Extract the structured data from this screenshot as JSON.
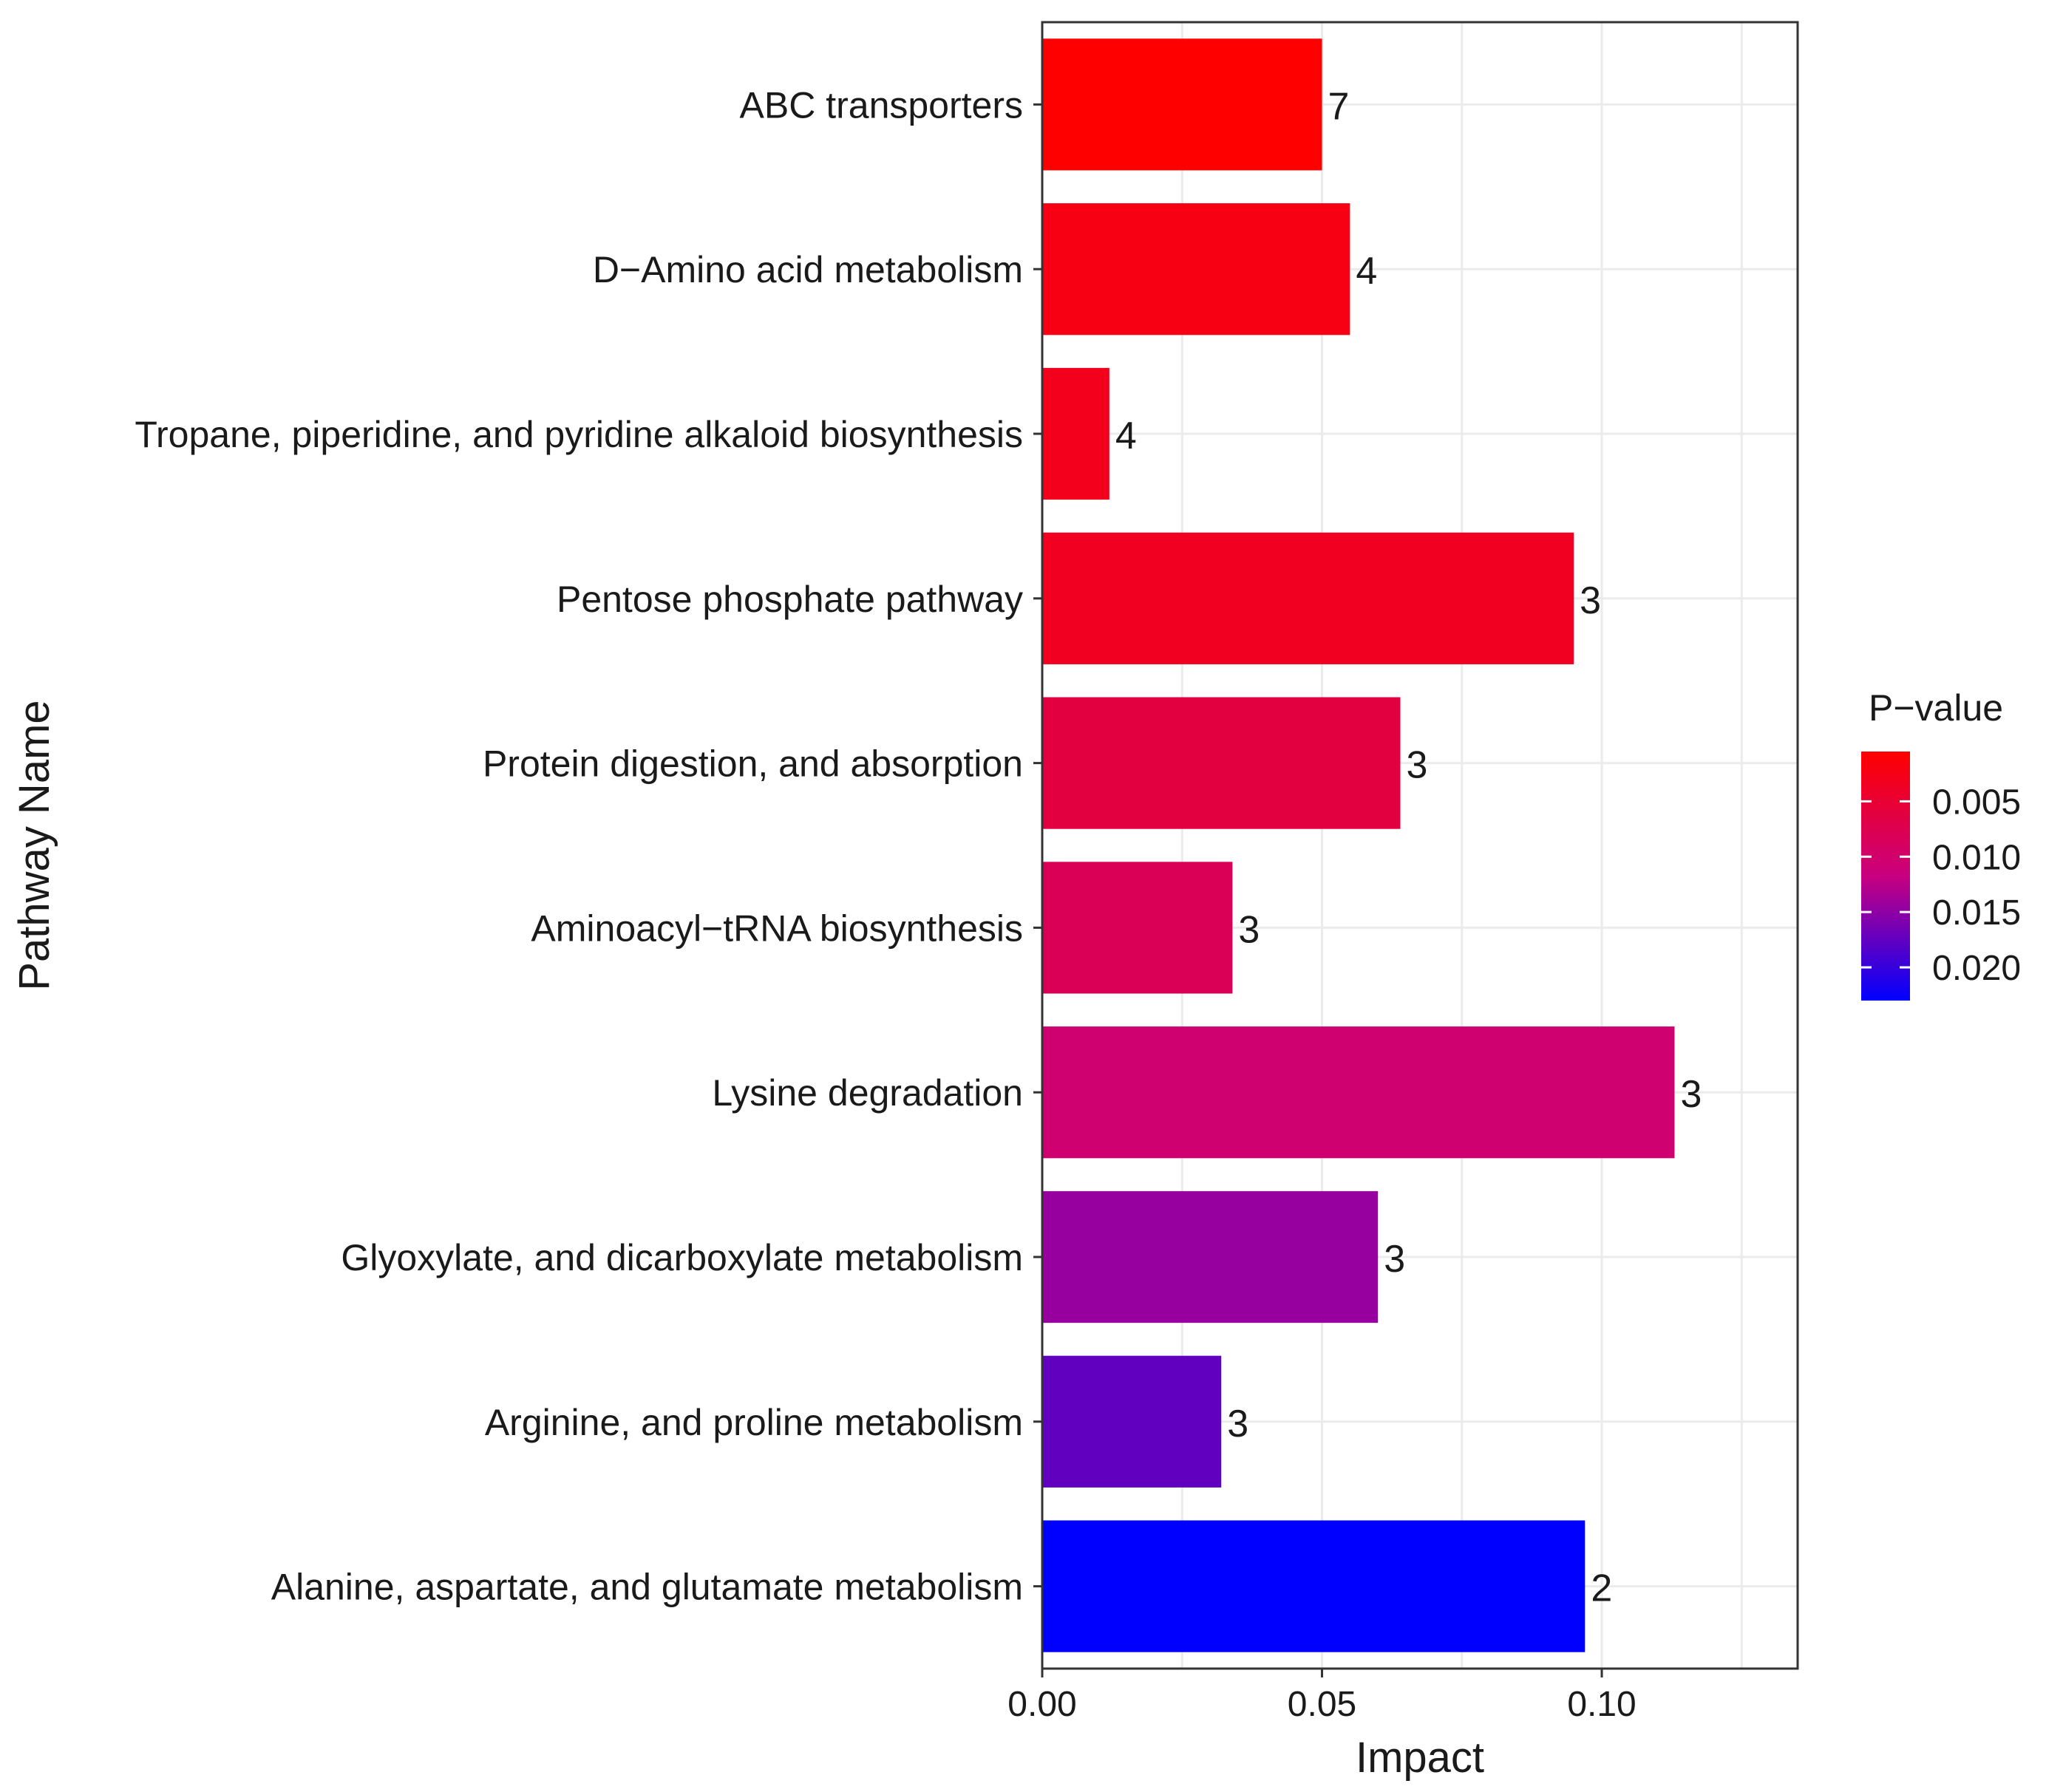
{
  "chart_data": {
    "type": "bar",
    "orientation": "horizontal",
    "xlabel": "Impact",
    "ylabel": "Pathway Name",
    "xlim": [
      0,
      0.135
    ],
    "xticks": [
      0.0,
      0.05,
      0.1
    ],
    "xtick_labels": [
      "0.00",
      "0.05",
      "0.10"
    ],
    "grid": true,
    "categories": [
      "ABC transporters",
      "D−Amino acid metabolism",
      "Tropane, piperidine, and pyridine alkaloid biosynthesis",
      "Pentose phosphate pathway",
      "Protein digestion, and absorption",
      "Aminoacyl−tRNA biosynthesis",
      "Lysine degradation",
      "Glyoxylate, and dicarboxylate metabolism",
      "Arginine, and proline metabolism",
      "Alanine, aspartate, and glutamate metabolism"
    ],
    "values": [
      0.05,
      0.055,
      0.012,
      0.095,
      0.064,
      0.034,
      0.113,
      0.06,
      0.032,
      0.097
    ],
    "bar_labels": [
      "7",
      "4",
      "4",
      "3",
      "3",
      "3",
      "3",
      "3",
      "3",
      "2"
    ],
    "p_values": [
      0.0005,
      0.0022,
      0.003,
      0.0034,
      0.0062,
      0.008,
      0.0103,
      0.0145,
      0.0175,
      0.023
    ],
    "legend": {
      "title": "P−value",
      "position": "right",
      "ticks": [
        0.005,
        0.01,
        0.015,
        0.02
      ],
      "tick_labels": [
        "0.005",
        "0.010",
        "0.015",
        "0.020"
      ],
      "range": [
        0.0005,
        0.023
      ],
      "color_low": "#FF0000",
      "color_high": "#0000FF"
    }
  }
}
